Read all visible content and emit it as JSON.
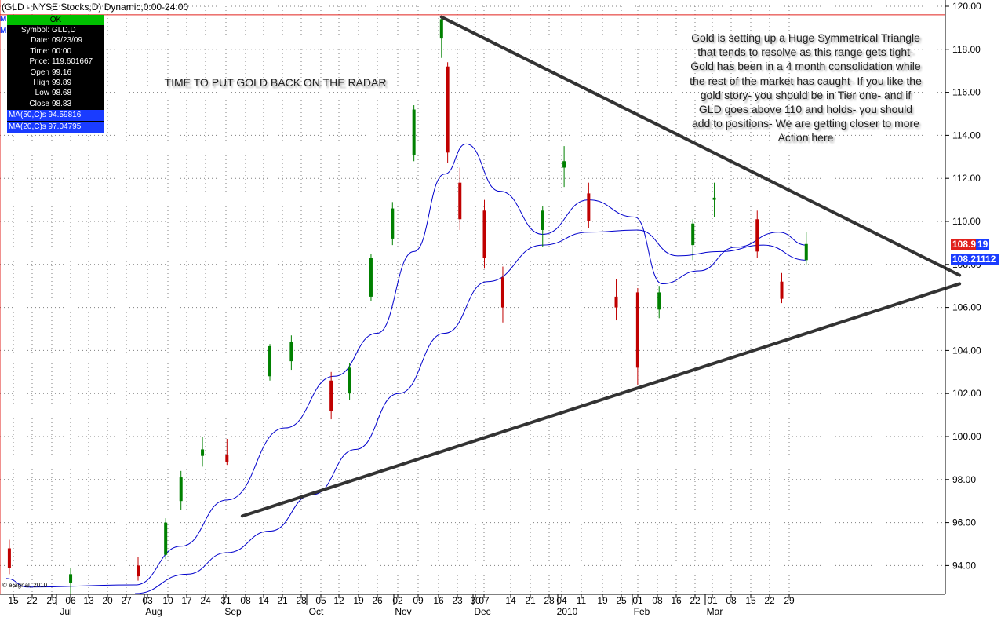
{
  "header": {
    "title": "(GLD - NYSE Stocks,D) Dynamic,0:00-24:00"
  },
  "cursor_panel": {
    "status": "OK",
    "rows": [
      {
        "label": "Symbol:",
        "value": "GLD,D"
      },
      {
        "label": "Date:",
        "value": "09/23/09"
      },
      {
        "label": "Time:",
        "value": "00:00"
      },
      {
        "label": "Price:",
        "value": "119.601667"
      },
      {
        "label": "Open",
        "value": "99.16"
      },
      {
        "label": "High",
        "value": "99.89"
      },
      {
        "label": "Low",
        "value": "98.68"
      },
      {
        "label": "Close",
        "value": "98.83"
      }
    ],
    "ma50": "MA(50,C)s 94.59816",
    "ma20": "MA(20,C)s 97.04795",
    "left_markers": [
      "M",
      "M"
    ]
  },
  "annotations": {
    "left": "TIME TO PUT GOLD BACK ON THE RADAR",
    "right": "Gold is setting up a Huge Symmetrical Triangle that tends to resolve as this range gets tight- Gold has been in a 4 month consolidation while the rest of the market has caught- If you like the gold story- you should be in Tier one- and if GLD goes above 110 and holds- you should add to positions- We are getting closer to more Action here"
  },
  "price_tags": {
    "last_price": "108.95",
    "last_price_tail": "19",
    "ma_value": "108.21112"
  },
  "watermark": "© eSignal, 2010",
  "colors": {
    "up_candle": "#008000",
    "down_candle": "#c00000",
    "ma_line": "#0000cc",
    "trendline": "#333333",
    "grid": "#7f7f7f",
    "crosshair": "#e0201c"
  },
  "chart_data": {
    "type": "candlestick",
    "symbol": "GLD",
    "interval": "D",
    "y_axis": {
      "min": 93,
      "max": 120,
      "ticks": [
        "94.00",
        "96.00",
        "98.00",
        "100.00",
        "102.00",
        "104.00",
        "106.00",
        "108.00",
        "110.00",
        "112.00",
        "114.00",
        "116.00",
        "118.00",
        "120.00"
      ]
    },
    "x_day_labels": [
      "15",
      "22",
      "29",
      "06",
      "13",
      "20",
      "27",
      "03",
      "10",
      "17",
      "24",
      "31",
      "08",
      "14",
      "21",
      "28",
      "05",
      "12",
      "19",
      "26",
      "02",
      "09",
      "16",
      "23",
      "30",
      "07",
      "14",
      "21",
      "28",
      "04",
      "11",
      "19",
      "25",
      "01",
      "08",
      "16",
      "22",
      "01",
      "08",
      "15",
      "22",
      "29"
    ],
    "x_month_labels": [
      "Jul",
      "Aug",
      "Sep",
      "Oct",
      "Nov",
      "Dec",
      "2010",
      "Feb",
      "Mar"
    ],
    "grid": true,
    "cursor": {
      "date": "09/23/09",
      "price": 119.601667
    },
    "candles": [
      {
        "date": "2009-07-14",
        "open": 94.8,
        "high": 95.2,
        "low": 93.6,
        "close": 93.9
      },
      {
        "date": "2009-08-03",
        "open": 93.2,
        "high": 93.9,
        "low": 92.7,
        "close": 93.6
      },
      {
        "date": "2009-08-25",
        "open": 94.0,
        "high": 94.4,
        "low": 93.3,
        "close": 93.5
      },
      {
        "date": "2009-09-03",
        "open": 94.5,
        "high": 96.2,
        "low": 94.3,
        "close": 96.0
      },
      {
        "date": "2009-09-08",
        "open": 97.0,
        "high": 98.4,
        "low": 96.6,
        "close": 98.1
      },
      {
        "date": "2009-09-15",
        "open": 99.1,
        "high": 100.0,
        "low": 98.6,
        "close": 99.4
      },
      {
        "date": "2009-09-23",
        "open": 99.16,
        "high": 99.89,
        "low": 98.68,
        "close": 98.83
      },
      {
        "date": "2009-10-07",
        "open": 102.8,
        "high": 104.3,
        "low": 102.6,
        "close": 104.2
      },
      {
        "date": "2009-10-14",
        "open": 103.5,
        "high": 104.7,
        "low": 103.1,
        "close": 104.4
      },
      {
        "date": "2009-10-27",
        "open": 102.6,
        "high": 103.0,
        "low": 100.8,
        "close": 101.2
      },
      {
        "date": "2009-11-02",
        "open": 102.0,
        "high": 103.4,
        "low": 101.7,
        "close": 103.2
      },
      {
        "date": "2009-11-09",
        "open": 106.5,
        "high": 108.5,
        "low": 106.3,
        "close": 108.3
      },
      {
        "date": "2009-11-16",
        "open": 109.2,
        "high": 110.9,
        "low": 108.9,
        "close": 110.6
      },
      {
        "date": "2009-11-23",
        "open": 113.1,
        "high": 115.4,
        "low": 112.8,
        "close": 115.2
      },
      {
        "date": "2009-12-02",
        "open": 118.5,
        "high": 119.5,
        "low": 117.6,
        "close": 119.4
      },
      {
        "date": "2009-12-04",
        "open": 117.2,
        "high": 117.4,
        "low": 112.7,
        "close": 113.2
      },
      {
        "date": "2009-12-08",
        "open": 111.8,
        "high": 112.5,
        "low": 109.6,
        "close": 110.1
      },
      {
        "date": "2009-12-16",
        "open": 110.5,
        "high": 111.0,
        "low": 107.8,
        "close": 108.3
      },
      {
        "date": "2009-12-22",
        "open": 107.4,
        "high": 107.9,
        "low": 105.3,
        "close": 106.0
      },
      {
        "date": "2010-01-04",
        "open": 109.6,
        "high": 110.7,
        "low": 108.8,
        "close": 110.5
      },
      {
        "date": "2010-01-11",
        "open": 112.5,
        "high": 113.5,
        "low": 111.6,
        "close": 112.8
      },
      {
        "date": "2010-01-19",
        "open": 111.3,
        "high": 111.8,
        "low": 109.7,
        "close": 110.0
      },
      {
        "date": "2010-01-28",
        "open": 106.5,
        "high": 107.3,
        "low": 105.4,
        "close": 106.0
      },
      {
        "date": "2010-02-04",
        "open": 106.7,
        "high": 106.9,
        "low": 102.4,
        "close": 103.2
      },
      {
        "date": "2010-02-11",
        "open": 105.9,
        "high": 107.0,
        "low": 105.5,
        "close": 106.7
      },
      {
        "date": "2010-02-22",
        "open": 108.9,
        "high": 110.1,
        "low": 108.2,
        "close": 109.9
      },
      {
        "date": "2010-03-01",
        "open": 111.0,
        "high": 111.8,
        "low": 110.2,
        "close": 111.1
      },
      {
        "date": "2010-03-15",
        "open": 110.1,
        "high": 110.5,
        "low": 108.3,
        "close": 108.6
      },
      {
        "date": "2010-03-23",
        "open": 107.2,
        "high": 107.6,
        "low": 106.2,
        "close": 106.4
      },
      {
        "date": "2010-03-31",
        "open": 108.2,
        "high": 109.5,
        "low": 108.0,
        "close": 108.95
      }
    ],
    "series": [
      {
        "name": "MA(50,C)s",
        "points": [
          {
            "date": "2009-08-24",
            "value": 92.7
          },
          {
            "date": "2009-09-10",
            "value": 93.6
          },
          {
            "date": "2009-09-23",
            "value": 94.6
          },
          {
            "date": "2009-10-07",
            "value": 95.6
          },
          {
            "date": "2009-10-21",
            "value": 97.3
          },
          {
            "date": "2009-11-04",
            "value": 99.4
          },
          {
            "date": "2009-11-18",
            "value": 102.0
          },
          {
            "date": "2009-12-03",
            "value": 104.8
          },
          {
            "date": "2009-12-17",
            "value": 107.2
          },
          {
            "date": "2010-01-04",
            "value": 108.9
          },
          {
            "date": "2010-01-19",
            "value": 109.5
          },
          {
            "date": "2010-02-04",
            "value": 109.6
          },
          {
            "date": "2010-02-17",
            "value": 108.4
          },
          {
            "date": "2010-03-03",
            "value": 108.6
          },
          {
            "date": "2010-03-17",
            "value": 108.9
          },
          {
            "date": "2010-03-31",
            "value": 108.2
          }
        ]
      },
      {
        "name": "MA(20,C)s",
        "points": [
          {
            "date": "2009-07-13",
            "value": 93.4
          },
          {
            "date": "2009-07-20",
            "value": 93.0
          },
          {
            "date": "2009-08-24",
            "value": 93.1
          },
          {
            "date": "2009-09-08",
            "value": 94.9
          },
          {
            "date": "2009-09-23",
            "value": 97.05
          },
          {
            "date": "2009-10-12",
            "value": 100.4
          },
          {
            "date": "2009-10-28",
            "value": 102.8
          },
          {
            "date": "2009-11-11",
            "value": 104.8
          },
          {
            "date": "2009-11-23",
            "value": 108.6
          },
          {
            "date": "2009-12-03",
            "value": 112.2
          },
          {
            "date": "2009-12-10",
            "value": 113.6
          },
          {
            "date": "2009-12-21",
            "value": 111.4
          },
          {
            "date": "2010-01-04",
            "value": 109.4
          },
          {
            "date": "2010-01-19",
            "value": 111.0
          },
          {
            "date": "2010-02-03",
            "value": 110.2
          },
          {
            "date": "2010-02-12",
            "value": 107.1
          },
          {
            "date": "2010-02-24",
            "value": 107.7
          },
          {
            "date": "2010-03-08",
            "value": 108.8
          },
          {
            "date": "2010-03-22",
            "value": 109.5
          },
          {
            "date": "2010-03-31",
            "value": 108.9
          }
        ]
      }
    ],
    "trendlines": [
      {
        "name": "upper",
        "from": {
          "date": "2009-12-02",
          "value": 119.5
        },
        "to": {
          "date": "2010-05-20",
          "value": 107.5
        }
      },
      {
        "name": "lower",
        "from": {
          "date": "2009-09-28",
          "value": 96.3
        },
        "to": {
          "date": "2010-05-20",
          "value": 107.1
        }
      }
    ]
  }
}
